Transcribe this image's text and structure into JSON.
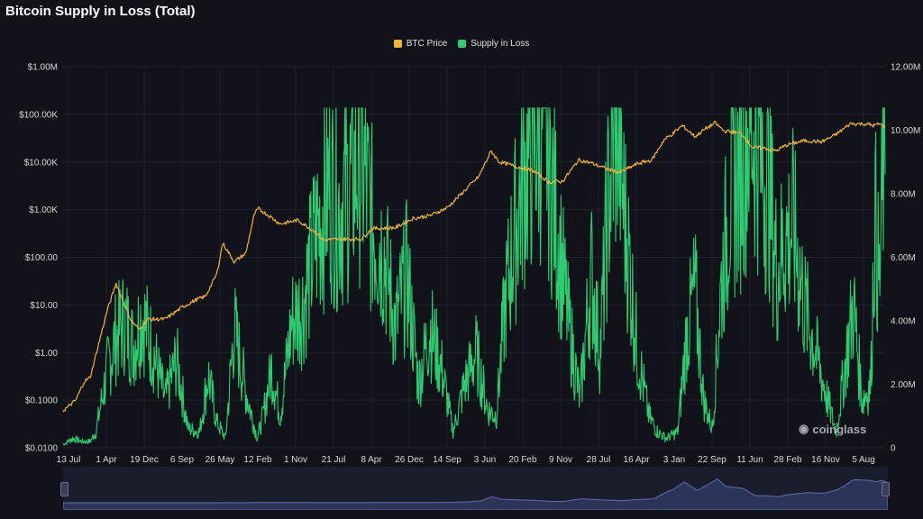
{
  "title": "Bitcoin Supply in Loss (Total)",
  "watermark": "coinglass",
  "colors": {
    "background": "#12131a",
    "btc_price": "#f0b33c",
    "supply_in_loss": "#2ecc71",
    "grid": "#23252f",
    "navigator_fill": "#2c3558",
    "navigator_line": "#5b6fb0"
  },
  "chart_data": {
    "type": "line",
    "title": "Bitcoin Supply in Loss (Total)",
    "legend_position": "top-center",
    "grid": true,
    "x_ticks": [
      "13 Jul",
      "1 Apr",
      "19 Dec",
      "6 Sep",
      "26 May",
      "12 Feb",
      "1 Nov",
      "21 Jul",
      "8 Apr",
      "26 Dec",
      "14 Sep",
      "3 Jun",
      "20 Feb",
      "9 Nov",
      "28 Jul",
      "16 Apr",
      "3 Jan",
      "22 Sep",
      "11 Jun",
      "28 Feb",
      "16 Nov",
      "5 Aug"
    ],
    "x_range_years": [
      2010.53,
      2024.8
    ],
    "y_left": {
      "scale": "log",
      "range": [
        0.01,
        1000000
      ],
      "ticks": [
        "$0.0100",
        "$0.1000",
        "$1.00",
        "$10.00",
        "$100.00",
        "$1.00K",
        "$10.00K",
        "$100.00K",
        "$1.00M"
      ]
    },
    "y_right": {
      "scale": "linear",
      "range": [
        0,
        12000000
      ],
      "ticks": [
        "0",
        "2.00M",
        "4.00M",
        "6.00M",
        "8.00M",
        "10.00M",
        "12.00M"
      ]
    },
    "series": [
      {
        "name": "BTC Price",
        "axis": "left",
        "color": "#f0b33c",
        "x": [
          2010.53,
          2010.6,
          2010.75,
          2010.9,
          2011.0,
          2011.1,
          2011.3,
          2011.45,
          2011.55,
          2011.7,
          2011.85,
          2012.0,
          2012.3,
          2012.6,
          2012.85,
          2013.0,
          2013.2,
          2013.3,
          2013.5,
          2013.7,
          2013.85,
          2013.92,
          2014.1,
          2014.3,
          2014.6,
          2014.9,
          2015.05,
          2015.4,
          2015.7,
          2015.9,
          2016.3,
          2016.6,
          2016.9,
          2017.2,
          2017.5,
          2017.75,
          2017.96,
          2018.1,
          2018.4,
          2018.7,
          2018.96,
          2019.2,
          2019.48,
          2019.7,
          2019.96,
          2020.2,
          2020.5,
          2020.75,
          2020.96,
          2021.1,
          2021.28,
          2021.5,
          2021.65,
          2021.85,
          2022.0,
          2022.3,
          2022.5,
          2022.7,
          2022.9,
          2023.1,
          2023.4,
          2023.7,
          2023.9,
          2024.0,
          2024.2,
          2024.5,
          2024.6,
          2024.7,
          2024.8
        ],
        "y": [
          0.06,
          0.07,
          0.1,
          0.25,
          0.3,
          0.9,
          8,
          28,
          14,
          5,
          3,
          5,
          5,
          9,
          13,
          15,
          45,
          200,
          80,
          120,
          800,
          1050,
          750,
          500,
          600,
          350,
          230,
          240,
          240,
          400,
          420,
          650,
          750,
          1100,
          2500,
          5000,
          17000,
          10000,
          8000,
          6500,
          3800,
          3900,
          11000,
          9500,
          7200,
          6000,
          9200,
          11000,
          29000,
          38000,
          58000,
          34000,
          47000,
          66000,
          45000,
          40000,
          20000,
          19500,
          17000,
          23000,
          28000,
          26500,
          35000,
          42000,
          64000,
          62000,
          58000,
          63000,
          55000
        ]
      },
      {
        "name": "Supply in Loss",
        "axis": "right",
        "color": "#2ecc71",
        "x": [
          2010.53,
          2010.7,
          2010.85,
          2011.0,
          2011.1,
          2011.3,
          2011.45,
          2011.6,
          2011.75,
          2011.9,
          2012.1,
          2012.3,
          2012.5,
          2012.7,
          2012.9,
          2013.05,
          2013.2,
          2013.35,
          2013.5,
          2013.7,
          2013.9,
          2014.0,
          2014.15,
          2014.3,
          2014.5,
          2014.7,
          2014.9,
          2015.0,
          2015.15,
          2015.3,
          2015.5,
          2015.7,
          2015.9,
          2016.1,
          2016.3,
          2016.5,
          2016.7,
          2016.9,
          2017.1,
          2017.3,
          2017.5,
          2017.7,
          2017.9,
          2018.05,
          2018.2,
          2018.35,
          2018.5,
          2018.7,
          2018.9,
          2019.0,
          2019.1,
          2019.3,
          2019.5,
          2019.7,
          2019.85,
          2020.0,
          2020.15,
          2020.22,
          2020.35,
          2020.5,
          2020.7,
          2020.85,
          2021.0,
          2021.2,
          2021.35,
          2021.5,
          2021.65,
          2021.8,
          2021.95,
          2022.1,
          2022.3,
          2022.45,
          2022.6,
          2022.8,
          2022.92,
          2023.05,
          2023.2,
          2023.4,
          2023.6,
          2023.8,
          2023.95,
          2024.1,
          2024.25,
          2024.4,
          2024.55,
          2024.62,
          2024.7,
          2024.78
        ],
        "y": [
          0.1,
          0.3,
          0.2,
          0.2,
          0.5,
          2.5,
          3.5,
          4.0,
          3.2,
          4.2,
          3.0,
          1.5,
          2.8,
          0.6,
          0.5,
          2.3,
          0.8,
          0.3,
          3.8,
          1.8,
          0.3,
          1.0,
          2.5,
          1.0,
          4.0,
          4.5,
          6.5,
          7.2,
          8.3,
          7.5,
          8.2,
          9.2,
          7.0,
          6.2,
          3.8,
          5.5,
          2.0,
          3.8,
          2.5,
          0.5,
          2.0,
          3.0,
          1.2,
          1.0,
          4.5,
          6.5,
          8.4,
          9.8,
          10.4,
          8.6,
          7.0,
          4.0,
          1.5,
          5.5,
          3.0,
          8.0,
          10.5,
          8.5,
          6.0,
          3.0,
          1.0,
          0.5,
          0.3,
          0.5,
          3.5,
          5.0,
          1.5,
          0.6,
          5.0,
          7.8,
          8.8,
          10.5,
          9.5,
          8.0,
          5.5,
          6.5,
          7.0,
          4.5,
          3.0,
          1.5,
          0.5,
          2.5,
          4.5,
          1.5,
          2.0,
          7.5,
          5.0,
          9.5
        ]
      }
    ]
  },
  "navigator": {
    "handle_left": "⁞",
    "handle_right": "⁞"
  }
}
